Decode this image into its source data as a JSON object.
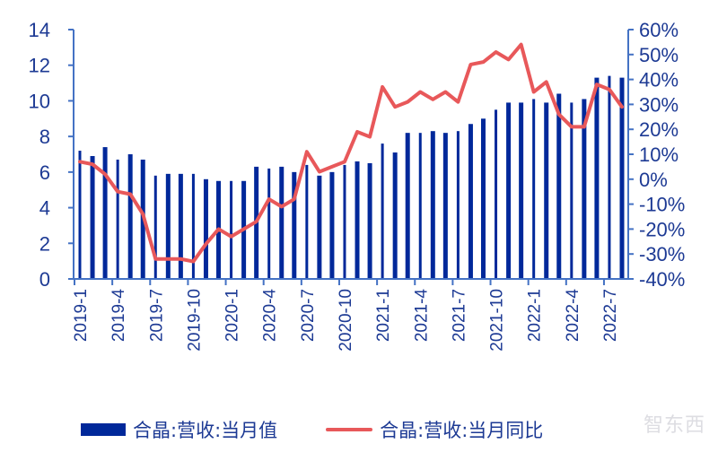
{
  "chart_data": {
    "type": "bar+line",
    "title": "",
    "categories": [
      "2019-1",
      "2019-2",
      "2019-3",
      "2019-4",
      "2019-5",
      "2019-6",
      "2019-7",
      "2019-8",
      "2019-9",
      "2019-10",
      "2019-11",
      "2019-12",
      "2020-1",
      "2020-2",
      "2020-3",
      "2020-4",
      "2020-5",
      "2020-6",
      "2020-7",
      "2020-8",
      "2020-9",
      "2020-10",
      "2020-11",
      "2020-12",
      "2021-1",
      "2021-2",
      "2021-3",
      "2021-4",
      "2021-5",
      "2021-6",
      "2021-7",
      "2021-8",
      "2021-9",
      "2021-10",
      "2021-11",
      "2021-12",
      "2022-1",
      "2022-2",
      "2022-3",
      "2022-4",
      "2022-5",
      "2022-6",
      "2022-7",
      "2022-8"
    ],
    "x_tick_labels": [
      "2019-1",
      "2019-4",
      "2019-7",
      "2019-10",
      "2020-1",
      "2020-4",
      "2020-7",
      "2020-10",
      "2021-1",
      "2021-4",
      "2021-7",
      "2021-10",
      "2022-1",
      "2022-4",
      "2022-7"
    ],
    "series": [
      {
        "name": "合晶:营收:当月值",
        "type": "bar",
        "axis": "left",
        "color": "#00289a",
        "values": [
          7.2,
          6.9,
          7.4,
          6.7,
          7.0,
          6.7,
          5.8,
          5.9,
          5.9,
          5.9,
          5.6,
          5.5,
          5.5,
          5.5,
          6.3,
          6.2,
          6.3,
          6.0,
          6.4,
          5.8,
          6.0,
          6.4,
          6.6,
          6.5,
          7.6,
          7.1,
          8.2,
          8.2,
          8.3,
          8.2,
          8.3,
          8.7,
          9.0,
          9.5,
          9.9,
          9.9,
          10.1,
          9.9,
          10.4,
          9.9,
          10.1,
          11.3,
          11.4,
          11.3
        ]
      },
      {
        "name": "合晶:营收:当月同比",
        "type": "line",
        "axis": "right",
        "color": "#e8585a",
        "values": [
          7,
          6,
          2,
          -5,
          -6,
          -14,
          -32,
          -32,
          -32,
          -33,
          -26,
          -20,
          -23,
          -20,
          -17,
          -8,
          -11,
          -8,
          11,
          3,
          5,
          7,
          19,
          17,
          37,
          29,
          31,
          35,
          32,
          35,
          31,
          46,
          47,
          51,
          48,
          54,
          35,
          39,
          26,
          21,
          21,
          38,
          36,
          29
        ]
      }
    ],
    "left_axis": {
      "min": 0,
      "max": 14,
      "ticks": [
        "0",
        "2",
        "4",
        "6",
        "8",
        "10",
        "12",
        "14"
      ]
    },
    "right_axis": {
      "min": -40,
      "max": 60,
      "unit": "%",
      "ticks": [
        "-40%",
        "-30%",
        "-20%",
        "-10%",
        "0%",
        "10%",
        "20%",
        "30%",
        "40%",
        "50%",
        "60%"
      ]
    },
    "xlabel": "",
    "ylabel": "",
    "grid": false,
    "legend_position": "bottom"
  },
  "legend": {
    "bar_label": "合晶:营收:当月值",
    "line_label": "合晶:营收:当月同比"
  },
  "watermark": "智东西"
}
